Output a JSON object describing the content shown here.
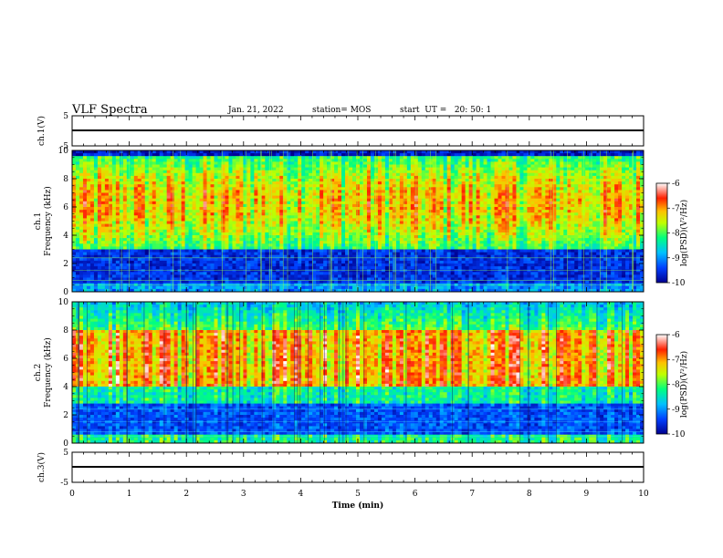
{
  "header": {
    "title": "VLF Spectra",
    "date": "Jan. 21, 2022",
    "station": "station= MOS",
    "start": "start  UT =   20: 50: 1"
  },
  "chart_data": [
    {
      "type": "line",
      "name": "ch1-voltage",
      "ylabel": "ch.1(V)",
      "ylim": [
        -5,
        5
      ],
      "y_ticks": [
        "5",
        "-5"
      ],
      "x": [
        0,
        10
      ],
      "y": [
        0,
        0
      ]
    },
    {
      "type": "heatmap",
      "name": "ch1-spectrogram",
      "ylabel": "ch.1\nFrequency (kHz)",
      "ylim": [
        0,
        10
      ],
      "y_ticks": [
        "0",
        "2",
        "4",
        "6",
        "8",
        "10"
      ],
      "xlim": [
        0,
        10
      ],
      "dominant_band_khz": [
        3,
        9.5
      ],
      "colorbar": {
        "label": "log(PSD)(V²/Hz)",
        "range": [
          -10,
          -6
        ],
        "ticks": [
          "-6",
          "-7",
          "-8",
          "-9",
          "-10"
        ]
      }
    },
    {
      "type": "heatmap",
      "name": "ch2-spectrogram",
      "ylabel": "ch.2\nFrequency (kHz)",
      "ylim": [
        0,
        10
      ],
      "y_ticks": [
        "0",
        "2",
        "4",
        "6",
        "8",
        "10"
      ],
      "xlim": [
        0,
        10
      ],
      "dominant_band_khz": [
        4,
        8
      ],
      "colorbar": {
        "label": "log(PSD)(V²/Hz)",
        "range": [
          -10,
          -6
        ],
        "ticks": [
          "-6",
          "-7",
          "-8",
          "-9",
          "-10"
        ]
      }
    },
    {
      "type": "line",
      "name": "ch3-voltage",
      "ylabel": "ch.3(V)",
      "ylim": [
        -5,
        5
      ],
      "y_ticks": [
        "5",
        "-5"
      ],
      "x": [
        0,
        10
      ],
      "y": [
        0,
        0
      ]
    }
  ],
  "x_axis": {
    "label": "Time (min)",
    "range": [
      0,
      10
    ],
    "ticks": [
      "0",
      "1",
      "2",
      "3",
      "4",
      "5",
      "6",
      "7",
      "8",
      "9",
      "10"
    ]
  }
}
